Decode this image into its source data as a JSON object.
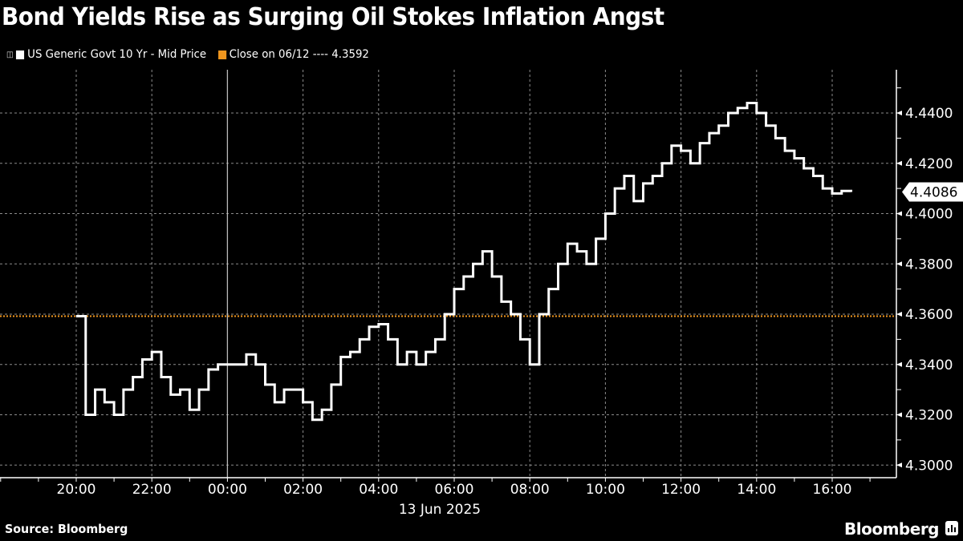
{
  "header": {
    "title": "Bond Yields Rise as Surging Oil Stokes Inflation Angst"
  },
  "legend": {
    "items": [
      {
        "label": "US Generic Govt 10 Yr - Mid Price",
        "color": "#ffffff"
      },
      {
        "label": "Close on 06/12 ---- 4.3592",
        "color": "#f0961e"
      }
    ]
  },
  "footer": {
    "source": "Source: Bloomberg",
    "brand": "Bloomberg"
  },
  "colors": {
    "background": "#000000",
    "line": "#ffffff",
    "close_line": "#f0961e",
    "grid": "#8c8c8c"
  },
  "chart_data": {
    "type": "line",
    "title": "Bond Yields Rise as Surging Oil Stokes Inflation Angst",
    "xlabel": "13 Jun 2025",
    "ylabel": "",
    "x_tick_labels": [
      "20:00",
      "22:00",
      "00:00",
      "02:00",
      "04:00",
      "06:00",
      "08:00",
      "10:00",
      "12:00",
      "14:00",
      "16:00"
    ],
    "y_tick_labels": [
      "4.3000",
      "4.3200",
      "4.3400",
      "4.3600",
      "4.3800",
      "4.4000",
      "4.4200",
      "4.4400"
    ],
    "ylim": [
      4.295,
      4.455
    ],
    "grid": true,
    "legend_position": "top-left",
    "axis_position": "right",
    "last_value_label": "4.4086",
    "reference_line": {
      "label": "Close on 06/12",
      "value": 4.3592,
      "style": "dotted",
      "color": "#f0961e"
    },
    "series": [
      {
        "name": "US Generic Govt 10 Yr - Mid Price",
        "x": [
          "20:00",
          "20:15",
          "20:30",
          "20:45",
          "21:00",
          "21:15",
          "21:30",
          "21:45",
          "22:00",
          "22:15",
          "22:30",
          "22:45",
          "23:00",
          "23:15",
          "23:30",
          "23:45",
          "00:00",
          "00:15",
          "00:30",
          "00:45",
          "01:00",
          "01:15",
          "01:30",
          "01:45",
          "02:00",
          "02:15",
          "02:30",
          "02:45",
          "03:00",
          "03:15",
          "03:30",
          "03:45",
          "04:00",
          "04:15",
          "04:30",
          "04:45",
          "05:00",
          "05:15",
          "05:30",
          "05:45",
          "06:00",
          "06:15",
          "06:30",
          "06:45",
          "07:00",
          "07:15",
          "07:30",
          "07:45",
          "08:00",
          "08:15",
          "08:30",
          "08:45",
          "09:00",
          "09:15",
          "09:30",
          "09:45",
          "10:00",
          "10:15",
          "10:30",
          "10:45",
          "11:00",
          "11:15",
          "11:30",
          "11:45",
          "12:00",
          "12:15",
          "12:30",
          "12:45",
          "13:00",
          "13:15",
          "13:30",
          "13:45",
          "14:00",
          "14:15",
          "14:30",
          "14:45",
          "15:00",
          "15:15",
          "15:30",
          "15:45",
          "16:00",
          "16:15",
          "16:30"
        ],
        "values": [
          4.3592,
          4.32,
          4.33,
          4.325,
          4.32,
          4.33,
          4.335,
          4.342,
          4.345,
          4.335,
          4.328,
          4.33,
          4.322,
          4.33,
          4.338,
          4.34,
          4.34,
          4.34,
          4.344,
          4.34,
          4.332,
          4.325,
          4.33,
          4.33,
          4.325,
          4.318,
          4.322,
          4.332,
          4.343,
          4.345,
          4.35,
          4.355,
          4.356,
          4.35,
          4.34,
          4.345,
          4.34,
          4.345,
          4.35,
          4.36,
          4.37,
          4.375,
          4.38,
          4.385,
          4.375,
          4.365,
          4.36,
          4.35,
          4.34,
          4.36,
          4.37,
          4.38,
          4.388,
          4.385,
          4.38,
          4.39,
          4.4,
          4.41,
          4.415,
          4.405,
          4.412,
          4.415,
          4.42,
          4.427,
          4.425,
          4.42,
          4.428,
          4.432,
          4.435,
          4.44,
          4.442,
          4.444,
          4.44,
          4.435,
          4.43,
          4.425,
          4.422,
          4.418,
          4.415,
          4.41,
          4.408,
          4.409,
          4.4086
        ]
      }
    ]
  }
}
